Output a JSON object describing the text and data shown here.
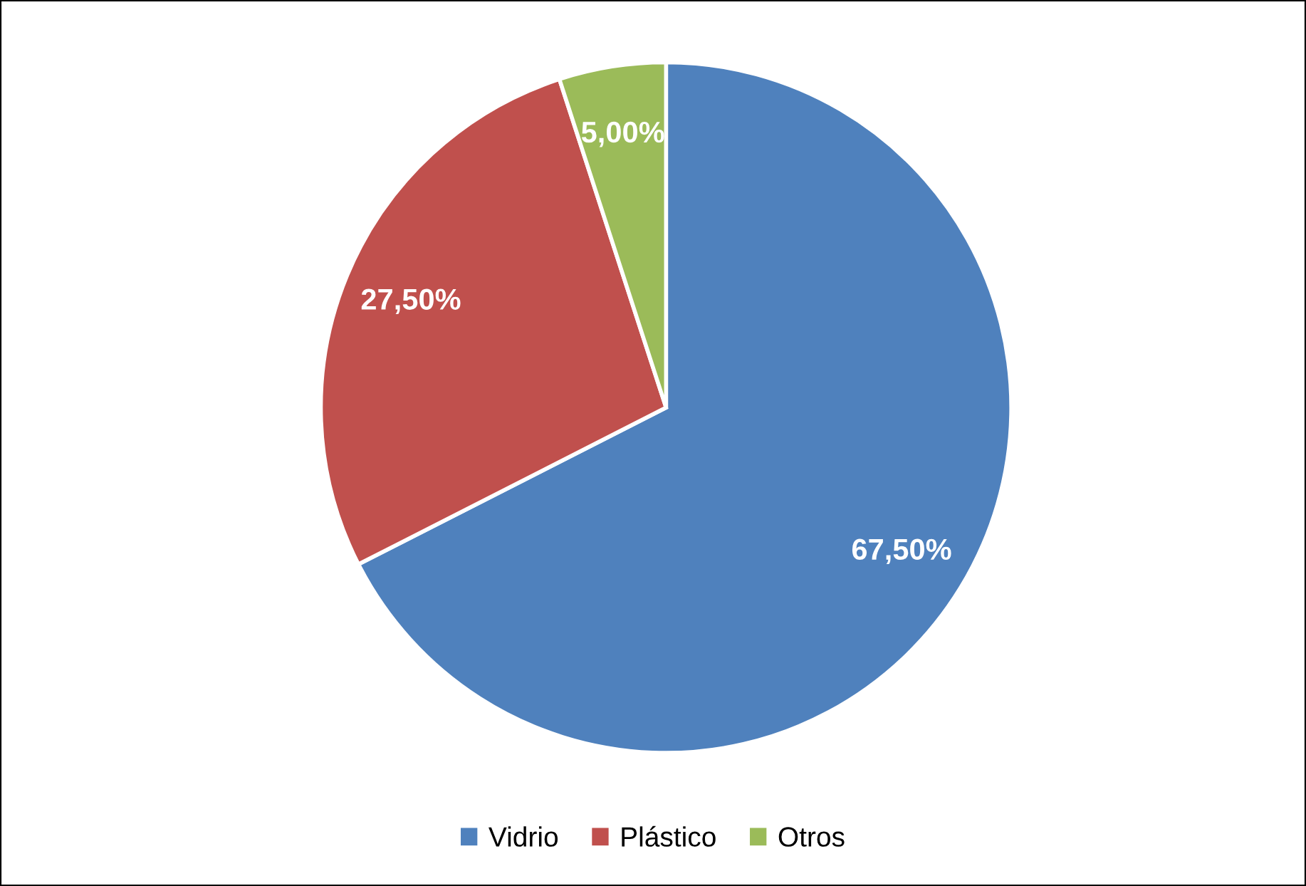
{
  "chart_data": {
    "type": "pie",
    "categories": [
      "Vidrio",
      "Plástico",
      "Otros"
    ],
    "values": [
      67.5,
      27.5,
      5
    ],
    "colors": [
      "#4f81bd",
      "#c0504d",
      "#9bbb59"
    ],
    "value_labels": [
      "67,50%",
      "27,50%",
      "5,00%"
    ],
    "legend": "bottom"
  }
}
